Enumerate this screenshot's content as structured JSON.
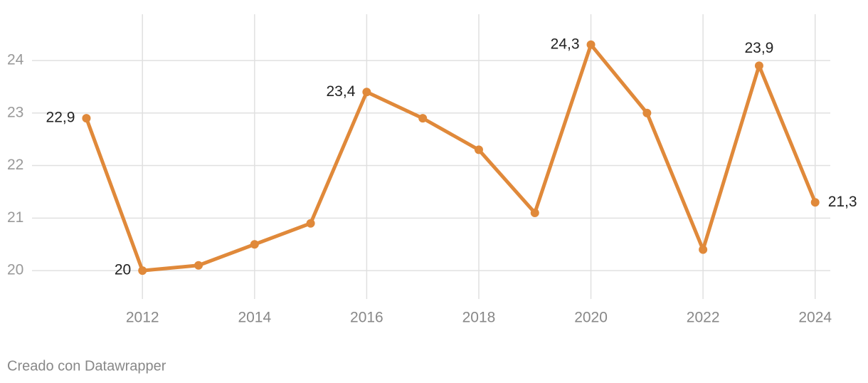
{
  "chart_data": {
    "type": "line",
    "x": [
      2011,
      2012,
      2013,
      2014,
      2015,
      2016,
      2017,
      2018,
      2019,
      2020,
      2021,
      2022,
      2023,
      2024
    ],
    "series": [
      {
        "color": "#e0893a",
        "values": [
          22.9,
          20,
          20.1,
          20.5,
          20.9,
          23.4,
          22.9,
          22.3,
          21.1,
          24.3,
          23.0,
          20.4,
          23.9,
          21.3
        ],
        "value_labels": [
          "22,9",
          "20",
          null,
          null,
          null,
          "23,4",
          null,
          null,
          null,
          "24,3",
          null,
          null,
          "23,9",
          "21,3"
        ]
      }
    ],
    "xlim": [
      2010.03,
      2024.27
    ],
    "ylim": [
      19.46,
      24.88
    ],
    "xticks": [
      2012,
      2014,
      2016,
      2018,
      2020,
      2022,
      2024
    ],
    "yticks": [
      20,
      21,
      22,
      23,
      24
    ],
    "grid": true,
    "footer": "Creado con Datawrapper"
  }
}
